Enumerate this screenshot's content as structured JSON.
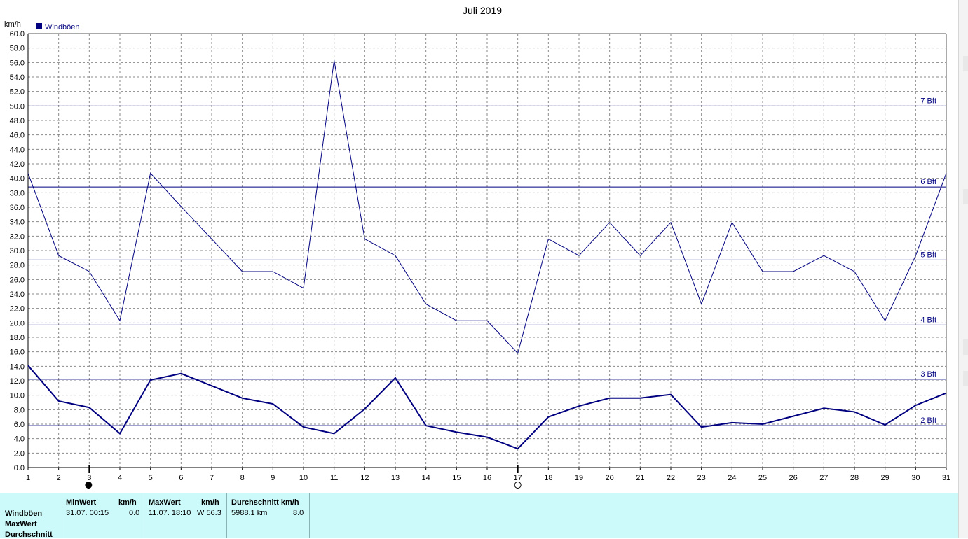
{
  "chart_data": {
    "type": "line",
    "title": "Juli 2019",
    "ylabel": "km/h",
    "legend": {
      "label": "Windböen",
      "color": "#000080",
      "placement": "top-left"
    },
    "ylim": [
      0,
      60
    ],
    "grid": true,
    "y_ticks": [
      "0.0",
      "2.0",
      "4.0",
      "6.0",
      "8.0",
      "10.0",
      "12.0",
      "14.0",
      "16.0",
      "18.0",
      "20.0",
      "22.0",
      "24.0",
      "26.0",
      "28.0",
      "30.0",
      "32.0",
      "34.0",
      "36.0",
      "38.0",
      "40.0",
      "42.0",
      "44.0",
      "46.0",
      "48.0",
      "50.0",
      "52.0",
      "54.0",
      "56.0",
      "58.0",
      "60.0"
    ],
    "x": [
      1,
      2,
      3,
      4,
      5,
      6,
      7,
      8,
      9,
      10,
      11,
      12,
      13,
      14,
      15,
      16,
      17,
      18,
      19,
      20,
      21,
      22,
      23,
      24,
      25,
      26,
      27,
      28,
      29,
      30,
      31
    ],
    "series": [
      {
        "name": "Windböen",
        "values": [
          40.7,
          29.3,
          27.1,
          20.3,
          40.7,
          36.1,
          31.6,
          27.1,
          27.1,
          24.8,
          56.3,
          31.6,
          29.3,
          22.6,
          20.3,
          20.3,
          15.8,
          31.6,
          29.3,
          33.9,
          29.3,
          33.9,
          22.6,
          33.9,
          27.1,
          27.1,
          29.3,
          27.1,
          20.3,
          29.3,
          40.7
        ],
        "color": "#000080",
        "width": 1
      },
      {
        "values": [
          14.1,
          9.2,
          8.3,
          4.7,
          12.1,
          13.0,
          11.3,
          9.6,
          8.8,
          5.6,
          4.7,
          8.1,
          12.4,
          5.8,
          4.9,
          4.2,
          2.6,
          7.0,
          8.5,
          9.6,
          9.6,
          10.1,
          5.6,
          6.2,
          6.0,
          7.1,
          8.2,
          7.7,
          5.9,
          8.6,
          10.3
        ],
        "color": "#000080",
        "width": 2
      }
    ],
    "beaufort_lines": [
      {
        "label": "2 Bft",
        "value": 5.8
      },
      {
        "label": "3 Bft",
        "value": 12.2
      },
      {
        "label": "4 Bft",
        "value": 19.7
      },
      {
        "label": "5 Bft",
        "value": 28.7
      },
      {
        "label": "6 Bft",
        "value": 38.8
      },
      {
        "label": "7 Bft",
        "value": 50.0
      }
    ],
    "markers": [
      {
        "x": 3,
        "symbol": "filled-circle"
      },
      {
        "x": 17,
        "symbol": "open-circle"
      }
    ]
  },
  "stats": {
    "row_labels": [
      "Windböen",
      "MaxWert",
      "Durchschnitt"
    ],
    "min_header": "MinWert",
    "min_unit": "km/h",
    "min_time": "31.07.  00:15",
    "min_value": "0.0",
    "max_header": "MaxWert",
    "max_unit": "km/h",
    "max_time": "11.07.  18:10",
    "max_value": "W 56.3",
    "avg_header": "Durchschnitt km/h",
    "avg_dist": "5988.1 km",
    "avg_value": "8.0"
  }
}
